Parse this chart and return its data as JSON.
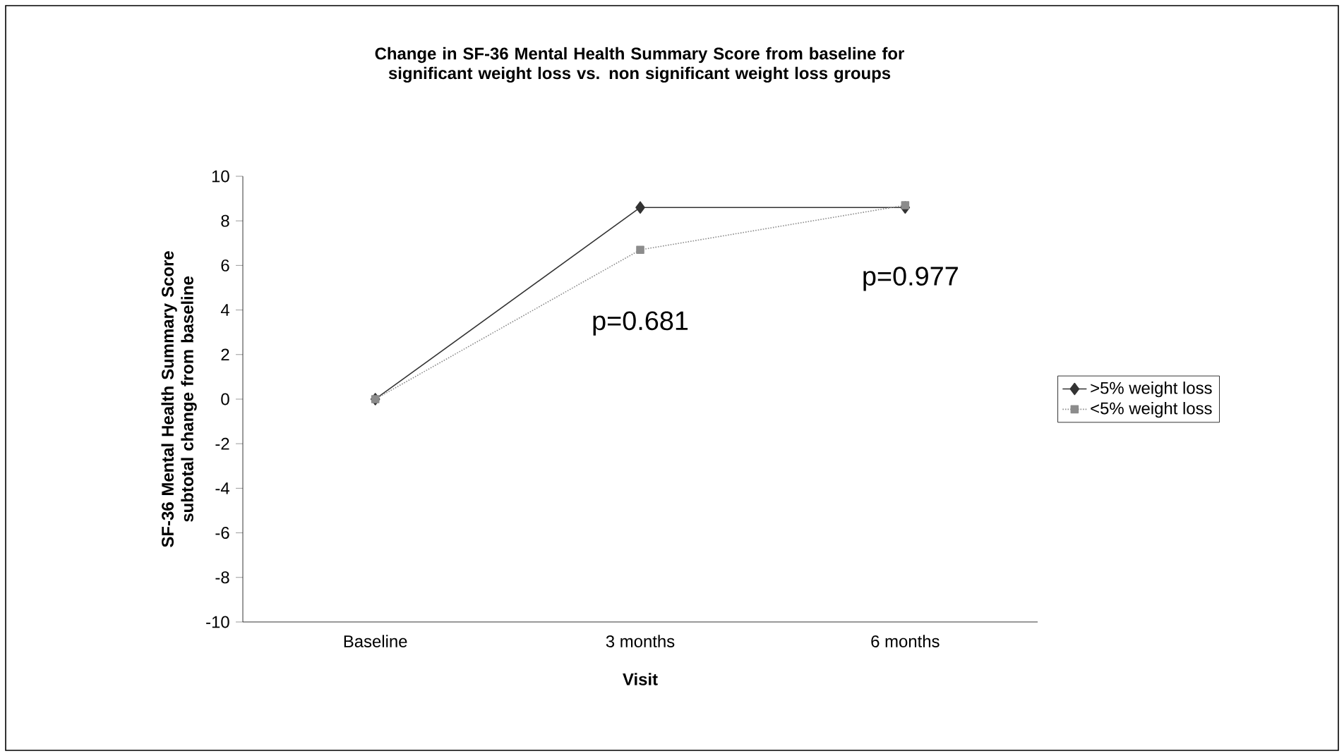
{
  "chart_data": {
    "type": "line",
    "title": "Change in SF-36 Mental Health Summary Score from baseline for significant weight loss vs. non significant weight loss groups",
    "xlabel": "Visit",
    "ylabel": "SF-36 Mental Health Summary Score subtotal change from baseline",
    "categories": [
      "Baseline",
      "3 months",
      "6 months"
    ],
    "series": [
      {
        "name": ">5% weight loss",
        "color": "#333333",
        "values": [
          0,
          8.6,
          8.6
        ],
        "marker": "diamond",
        "line_style": "solid"
      },
      {
        "name": "<5% weight loss",
        "color": "#8c8c8c",
        "values": [
          0,
          6.7,
          8.7
        ],
        "marker": "square",
        "line_style": "dotted"
      }
    ],
    "ylim": [
      -10,
      10
    ],
    "yticks": [
      -10,
      -8,
      -6,
      -4,
      -2,
      0,
      2,
      4,
      6,
      8,
      10
    ],
    "annotations": [
      "p=0.681",
      "p=0.977"
    ],
    "grid": false,
    "legend": "right"
  }
}
